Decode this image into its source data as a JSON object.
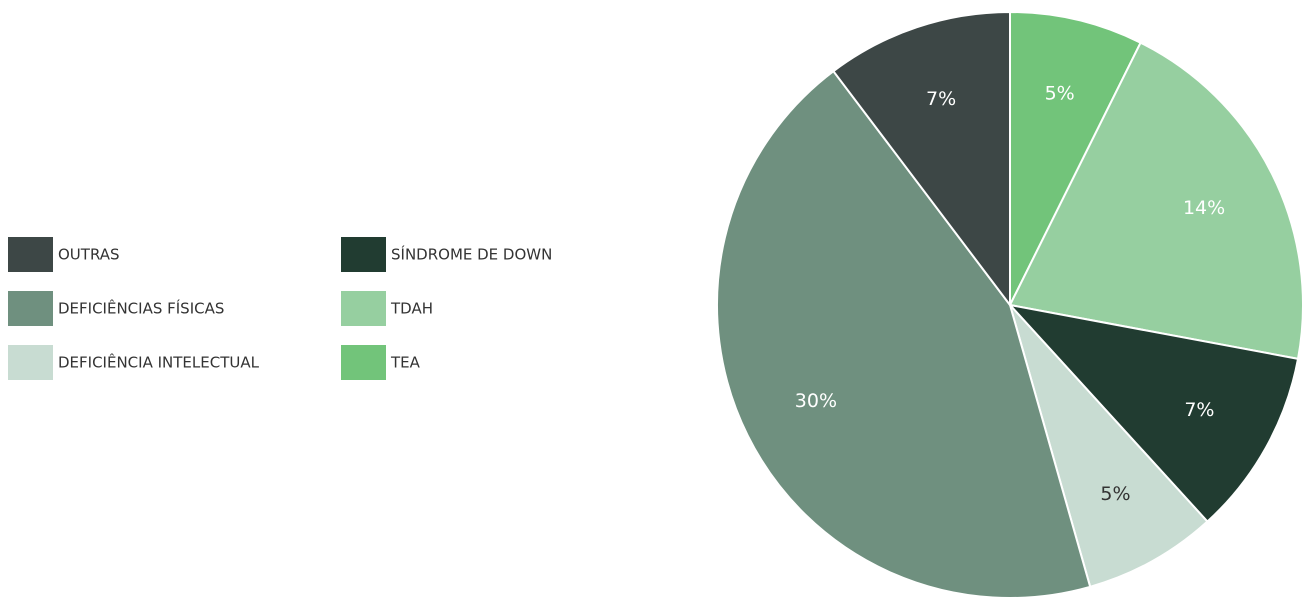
{
  "chart_data": {
    "type": "pie",
    "categories": [
      "TEA",
      "TDAH",
      "SÍNDROME DE DOWN",
      "DEFICIÊNCIA INTELECTUAL",
      "DEFICIÊNCIAS FÍSICAS",
      "OUTRAS"
    ],
    "values": [
      5,
      14,
      7,
      5,
      30,
      7
    ],
    "value_labels": [
      "5%",
      "14%",
      "7%",
      "5%",
      "30%",
      "7%"
    ],
    "colors": [
      "#72c47a",
      "#96cfa0",
      "#213c31",
      "#c8dcd2",
      "#6f907f",
      "#3d4746"
    ]
  }
}
